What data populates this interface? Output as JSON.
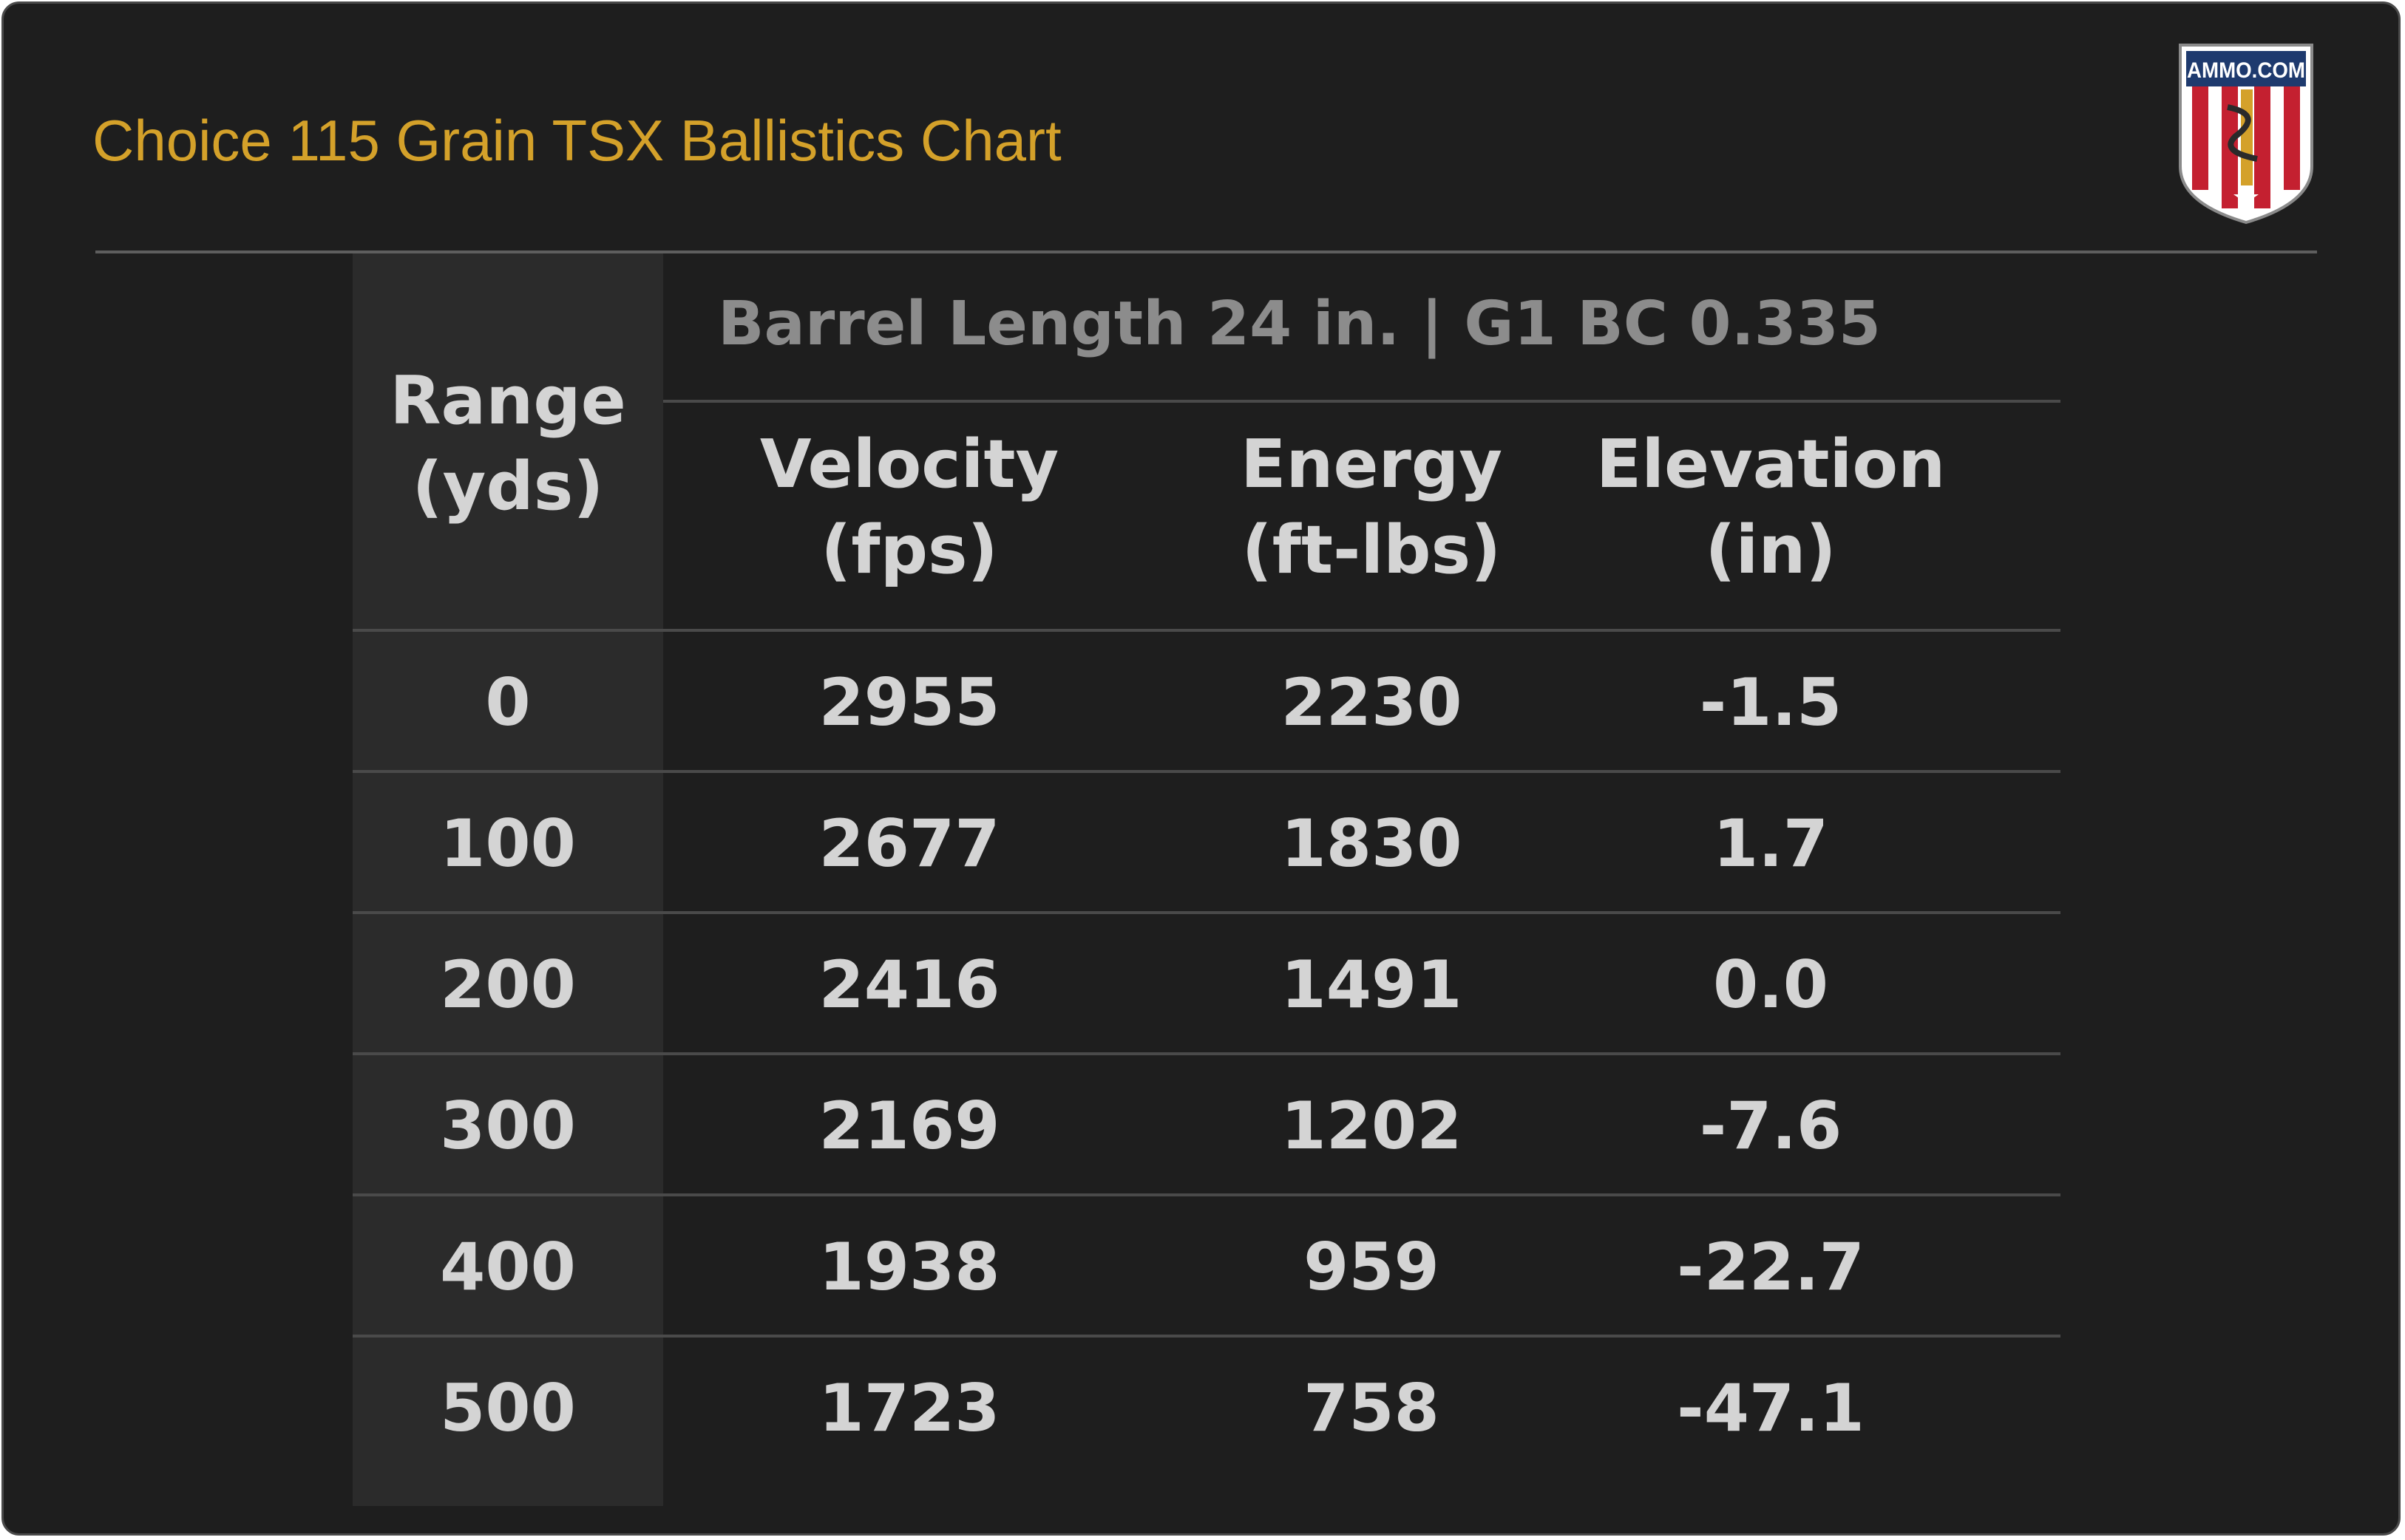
{
  "title": "Choice 115 Grain TSX Ballistics Chart",
  "logo": {
    "text": "AMMO.COM",
    "icon": "ammo-com-shield-logo",
    "colors": {
      "navy": "#1e3a6e",
      "red": "#c42030",
      "gold": "#d4a12a"
    }
  },
  "colors": {
    "background": "#1e1e1e",
    "title": "#d4a12a",
    "text": "#d4d4d4",
    "subheader": "#8c8c8c",
    "range_column": "#2b2b2b"
  },
  "subheader": "Barrel Length 24 in.  |  G1 BC  0.335",
  "headers": {
    "range": [
      "Range",
      "(yds)"
    ],
    "velocity": [
      "Velocity",
      "(fps)"
    ],
    "energy": [
      "Energy",
      "(ft-lbs)"
    ],
    "elevation": [
      "Elevation",
      "(in)"
    ]
  },
  "chart_data": {
    "type": "table",
    "title": "Choice 115 Grain TSX Ballistics Chart",
    "columns": [
      "Range (yds)",
      "Velocity (fps)",
      "Energy (ft-lbs)",
      "Elevation (in)"
    ],
    "rows": [
      [
        "0",
        "2955",
        "2230",
        "-1.5"
      ],
      [
        "100",
        "2677",
        "1830",
        "1.7"
      ],
      [
        "200",
        "2416",
        "1491",
        "0.0"
      ],
      [
        "300",
        "2169",
        "1202",
        "-7.6"
      ],
      [
        "400",
        "1938",
        "959",
        "-22.7"
      ],
      [
        "500",
        "1723",
        "758",
        "-47.1"
      ]
    ]
  }
}
